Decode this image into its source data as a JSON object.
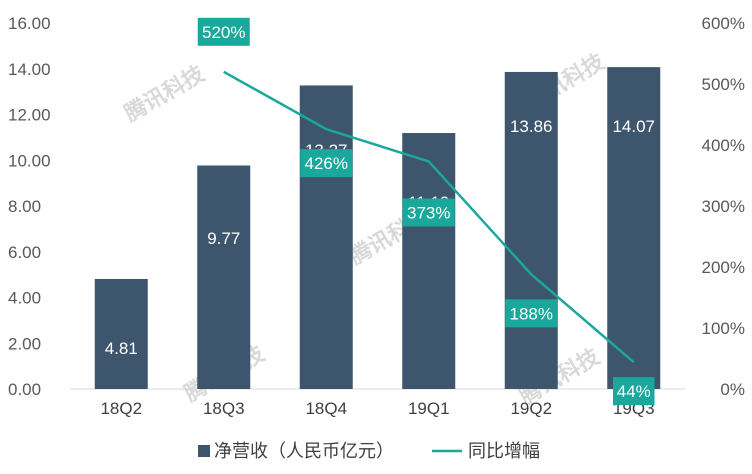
{
  "chart_data": {
    "type": "bar",
    "title": "",
    "categories": [
      "18Q2",
      "18Q3",
      "18Q4",
      "19Q1",
      "19Q2",
      "19Q3"
    ],
    "series": [
      {
        "name": "净营收（人民币亿元）",
        "type": "bar",
        "axis": "left",
        "values": [
          4.81,
          9.77,
          13.27,
          11.19,
          13.86,
          14.07
        ],
        "labels": [
          "4.81",
          "9.77",
          "13.27",
          "11.19",
          "13.86",
          "14.07"
        ],
        "color": "#3d566e"
      },
      {
        "name": "同比增幅",
        "type": "line",
        "axis": "right",
        "values": [
          null,
          520,
          426,
          373,
          188,
          44
        ],
        "labels": [
          "",
          "520%",
          "426%",
          "373%",
          "188%",
          "44%"
        ],
        "color": "#1aa89c"
      }
    ],
    "y_left": {
      "ylim": [
        0,
        16
      ],
      "ticks": [
        "0.00",
        "2.00",
        "4.00",
        "6.00",
        "8.00",
        "10.00",
        "12.00",
        "14.00",
        "16.00"
      ]
    },
    "y_right": {
      "ylim": [
        0,
        600
      ],
      "ticks": [
        "0%",
        "100%",
        "200%",
        "300%",
        "400%",
        "500%",
        "600%"
      ]
    },
    "legend": {
      "position": "bottom",
      "items": [
        "净营收（人民币亿元）",
        "同比增幅"
      ]
    },
    "grid": false,
    "watermark": "腾讯科技"
  }
}
